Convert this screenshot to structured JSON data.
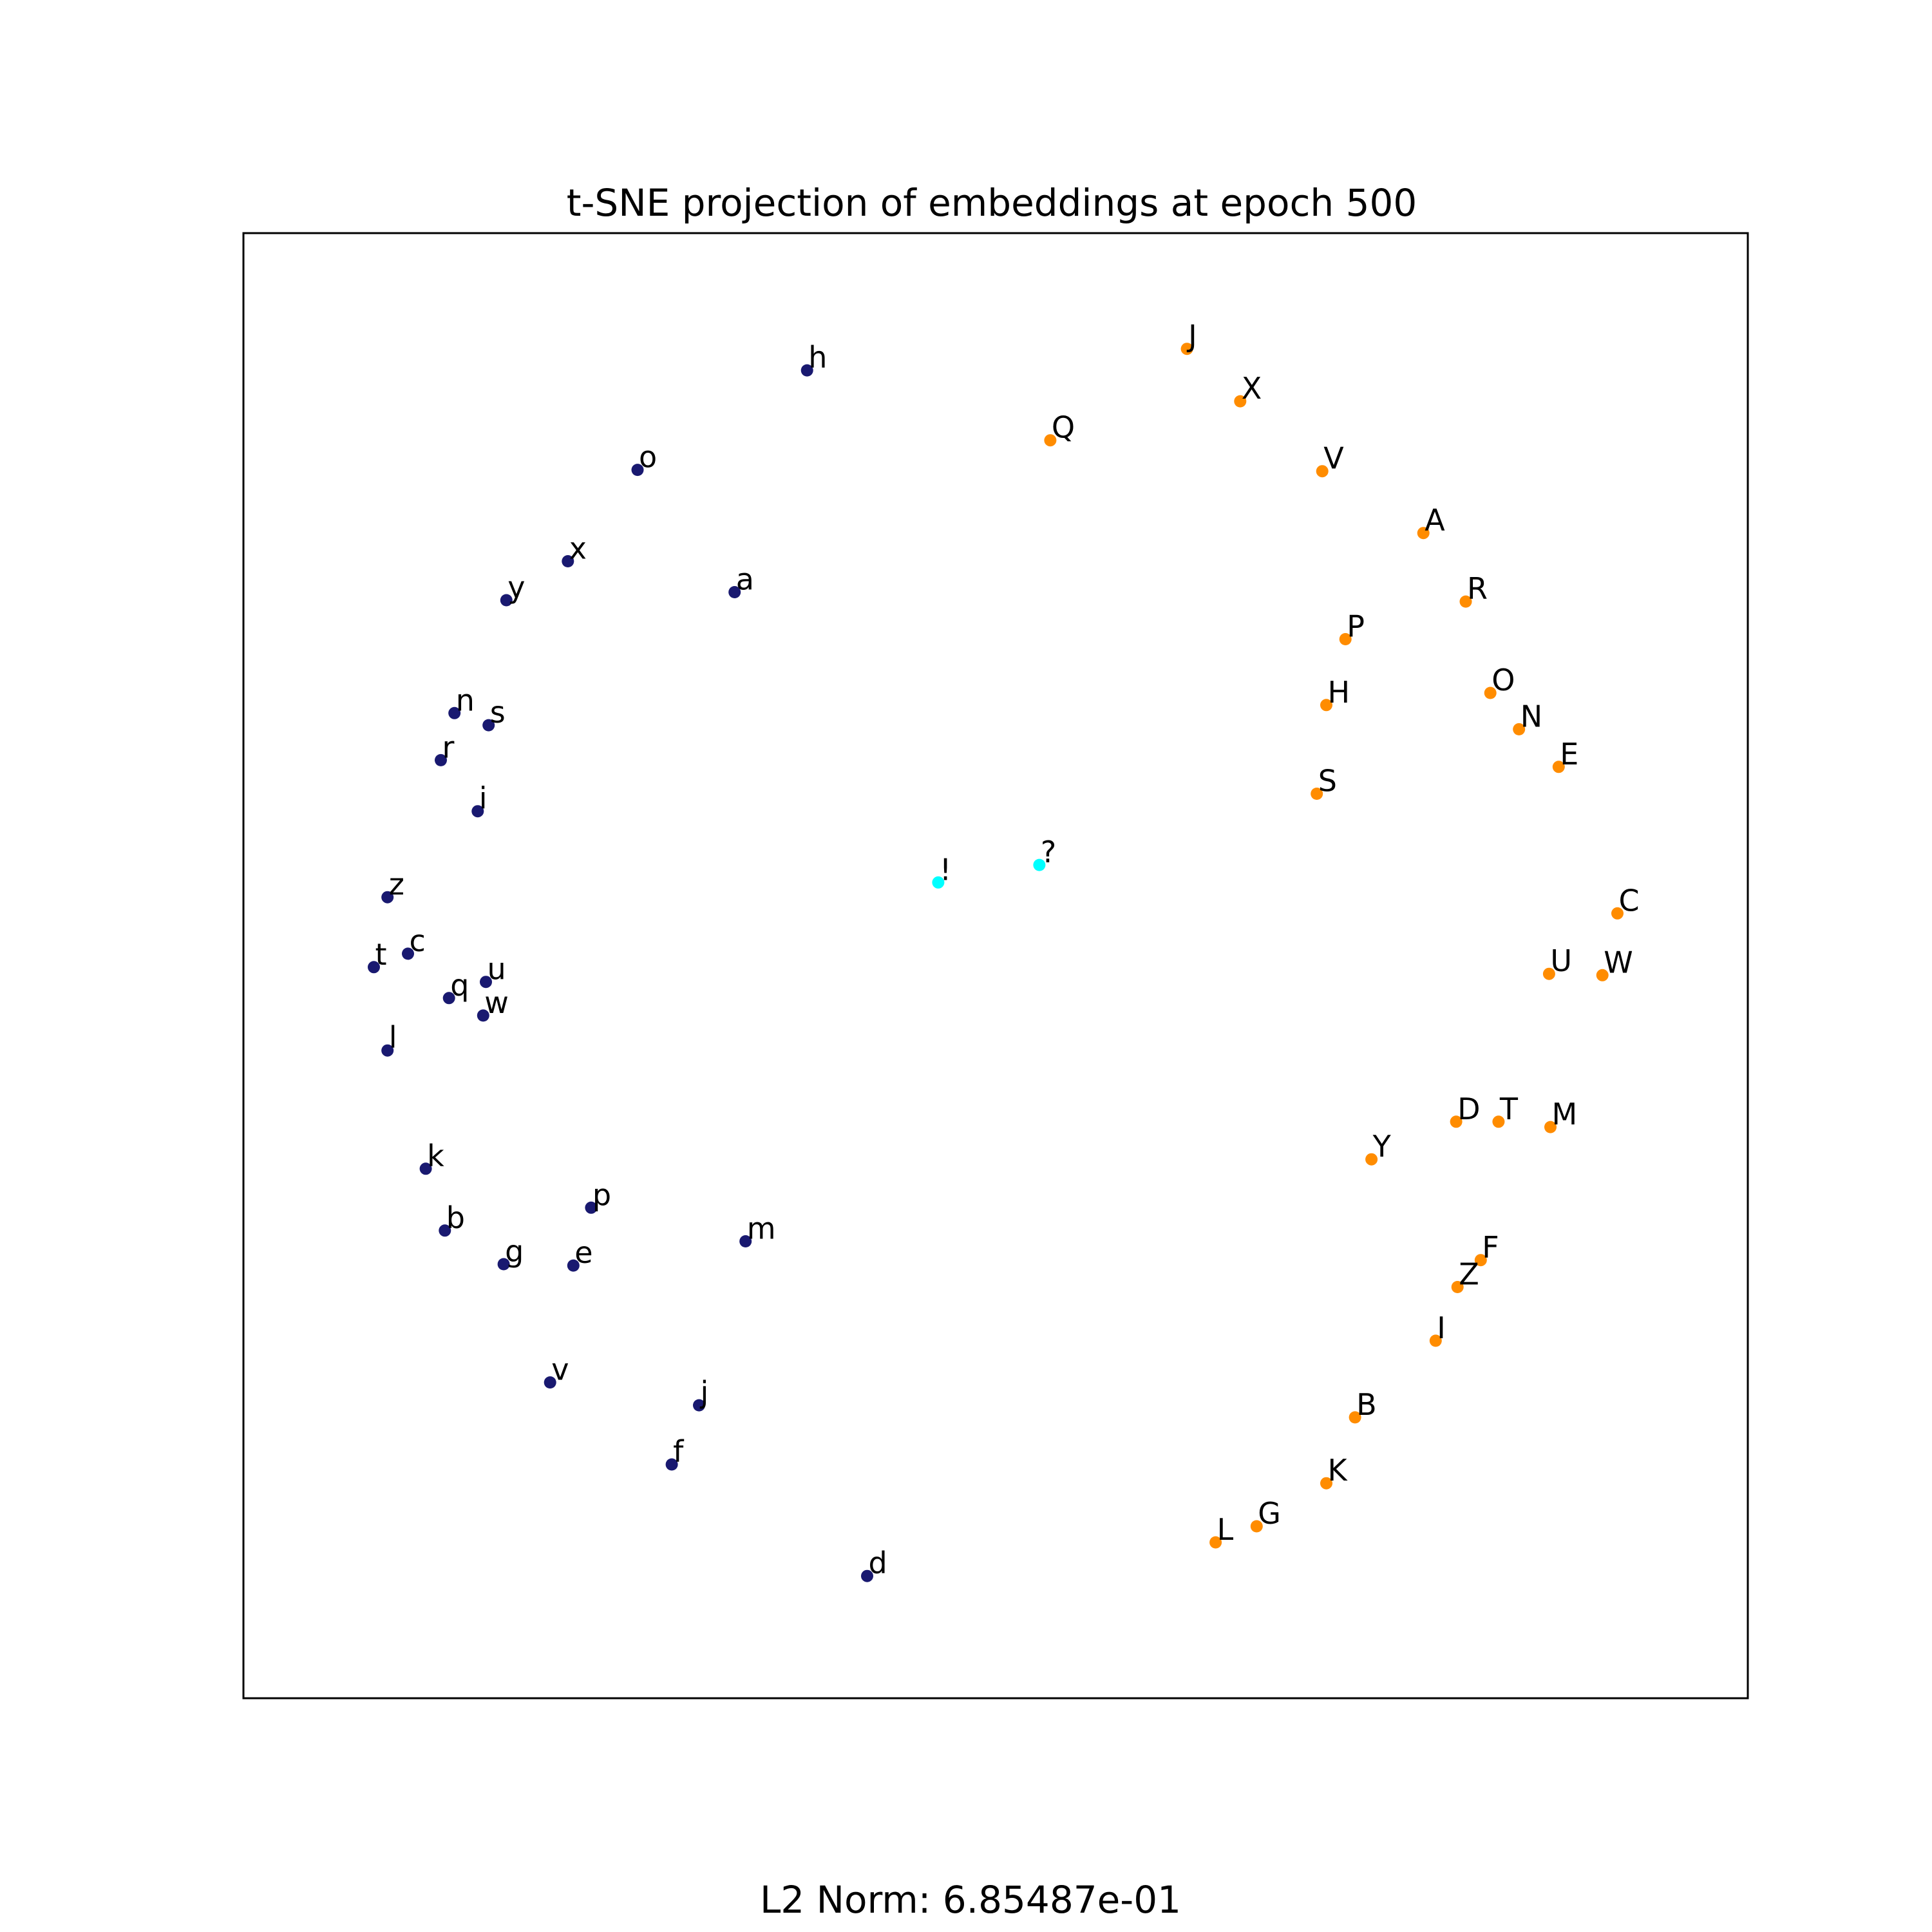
{
  "chart_data": {
    "type": "scatter",
    "title": "t-SNE projection of embeddings at epoch 500",
    "xlabel": "",
    "ylabel": "",
    "xlim": [
      0,
      100
    ],
    "ylim": [
      0,
      100
    ],
    "axes_ticks": "none",
    "grid": false,
    "colors": {
      "lowercase": "#191970",
      "uppercase": "#ff8c00",
      "punctuation": "#00ffff"
    },
    "points": [
      {
        "label": "h",
        "group": "lowercase",
        "x": 36.2,
        "y": 94.1
      },
      {
        "label": "o",
        "group": "lowercase",
        "x": 23.8,
        "y": 86.7
      },
      {
        "label": "x",
        "group": "lowercase",
        "x": 18.7,
        "y": 79.9
      },
      {
        "label": "y",
        "group": "lowercase",
        "x": 14.2,
        "y": 77.0
      },
      {
        "label": "a",
        "group": "lowercase",
        "x": 30.9,
        "y": 77.6
      },
      {
        "label": "n",
        "group": "lowercase",
        "x": 10.4,
        "y": 68.6
      },
      {
        "label": "s",
        "group": "lowercase",
        "x": 12.9,
        "y": 67.7
      },
      {
        "label": "r",
        "group": "lowercase",
        "x": 9.4,
        "y": 65.1
      },
      {
        "label": "i",
        "group": "lowercase",
        "x": 12.1,
        "y": 61.3
      },
      {
        "label": "z",
        "group": "lowercase",
        "x": 5.5,
        "y": 54.9
      },
      {
        "label": "c",
        "group": "lowercase",
        "x": 7.0,
        "y": 50.7
      },
      {
        "label": "t",
        "group": "lowercase",
        "x": 4.5,
        "y": 49.7
      },
      {
        "label": "u",
        "group": "lowercase",
        "x": 12.7,
        "y": 48.6
      },
      {
        "label": "q",
        "group": "lowercase",
        "x": 10.0,
        "y": 47.4
      },
      {
        "label": "w",
        "group": "lowercase",
        "x": 12.5,
        "y": 46.1
      },
      {
        "label": "l",
        "group": "lowercase",
        "x": 5.5,
        "y": 43.5
      },
      {
        "label": "k",
        "group": "lowercase",
        "x": 8.3,
        "y": 34.7
      },
      {
        "label": "p",
        "group": "lowercase",
        "x": 20.4,
        "y": 31.8
      },
      {
        "label": "b",
        "group": "lowercase",
        "x": 9.7,
        "y": 30.1
      },
      {
        "label": "m",
        "group": "lowercase",
        "x": 31.7,
        "y": 29.3
      },
      {
        "label": "g",
        "group": "lowercase",
        "x": 14.0,
        "y": 27.6
      },
      {
        "label": "e",
        "group": "lowercase",
        "x": 19.1,
        "y": 27.5
      },
      {
        "label": "v",
        "group": "lowercase",
        "x": 17.4,
        "y": 18.8
      },
      {
        "label": "j",
        "group": "lowercase",
        "x": 28.3,
        "y": 17.1
      },
      {
        "label": "f",
        "group": "lowercase",
        "x": 26.3,
        "y": 12.7
      },
      {
        "label": "d",
        "group": "lowercase",
        "x": 40.6,
        "y": 4.4
      },
      {
        "label": "!",
        "group": "punctuation",
        "x": 45.8,
        "y": 56.0
      },
      {
        "label": "?",
        "group": "punctuation",
        "x": 53.2,
        "y": 57.3
      },
      {
        "label": "J",
        "group": "uppercase",
        "x": 64.0,
        "y": 95.7
      },
      {
        "label": "X",
        "group": "uppercase",
        "x": 67.9,
        "y": 91.8
      },
      {
        "label": "Q",
        "group": "uppercase",
        "x": 54.0,
        "y": 88.9
      },
      {
        "label": "V",
        "group": "uppercase",
        "x": 73.9,
        "y": 86.6
      },
      {
        "label": "A",
        "group": "uppercase",
        "x": 81.3,
        "y": 82.0
      },
      {
        "label": "R",
        "group": "uppercase",
        "x": 84.4,
        "y": 76.9
      },
      {
        "label": "P",
        "group": "uppercase",
        "x": 75.6,
        "y": 74.1
      },
      {
        "label": "H",
        "group": "uppercase",
        "x": 74.2,
        "y": 69.2
      },
      {
        "label": "O",
        "group": "uppercase",
        "x": 86.2,
        "y": 70.1
      },
      {
        "label": "N",
        "group": "uppercase",
        "x": 88.3,
        "y": 67.4
      },
      {
        "label": "E",
        "group": "uppercase",
        "x": 91.2,
        "y": 64.6
      },
      {
        "label": "S",
        "group": "uppercase",
        "x": 73.5,
        "y": 62.6
      },
      {
        "label": "C",
        "group": "uppercase",
        "x": 95.5,
        "y": 53.7
      },
      {
        "label": "U",
        "group": "uppercase",
        "x": 90.5,
        "y": 49.2
      },
      {
        "label": "W",
        "group": "uppercase",
        "x": 94.4,
        "y": 49.1
      },
      {
        "label": "D",
        "group": "uppercase",
        "x": 83.7,
        "y": 38.2
      },
      {
        "label": "T",
        "group": "uppercase",
        "x": 86.8,
        "y": 38.2
      },
      {
        "label": "M",
        "group": "uppercase",
        "x": 90.6,
        "y": 37.8
      },
      {
        "label": "Y",
        "group": "uppercase",
        "x": 77.5,
        "y": 35.4
      },
      {
        "label": "F",
        "group": "uppercase",
        "x": 85.5,
        "y": 27.9
      },
      {
        "label": "Z",
        "group": "uppercase",
        "x": 83.8,
        "y": 25.9
      },
      {
        "label": "I",
        "group": "uppercase",
        "x": 82.2,
        "y": 21.9
      },
      {
        "label": "B",
        "group": "uppercase",
        "x": 76.3,
        "y": 16.2
      },
      {
        "label": "K",
        "group": "uppercase",
        "x": 74.2,
        "y": 11.3
      },
      {
        "label": "G",
        "group": "uppercase",
        "x": 69.1,
        "y": 8.1
      },
      {
        "label": "L",
        "group": "uppercase",
        "x": 66.1,
        "y": 6.9
      }
    ]
  },
  "footer": {
    "text": "L2 Norm: 6.85487e-01"
  }
}
